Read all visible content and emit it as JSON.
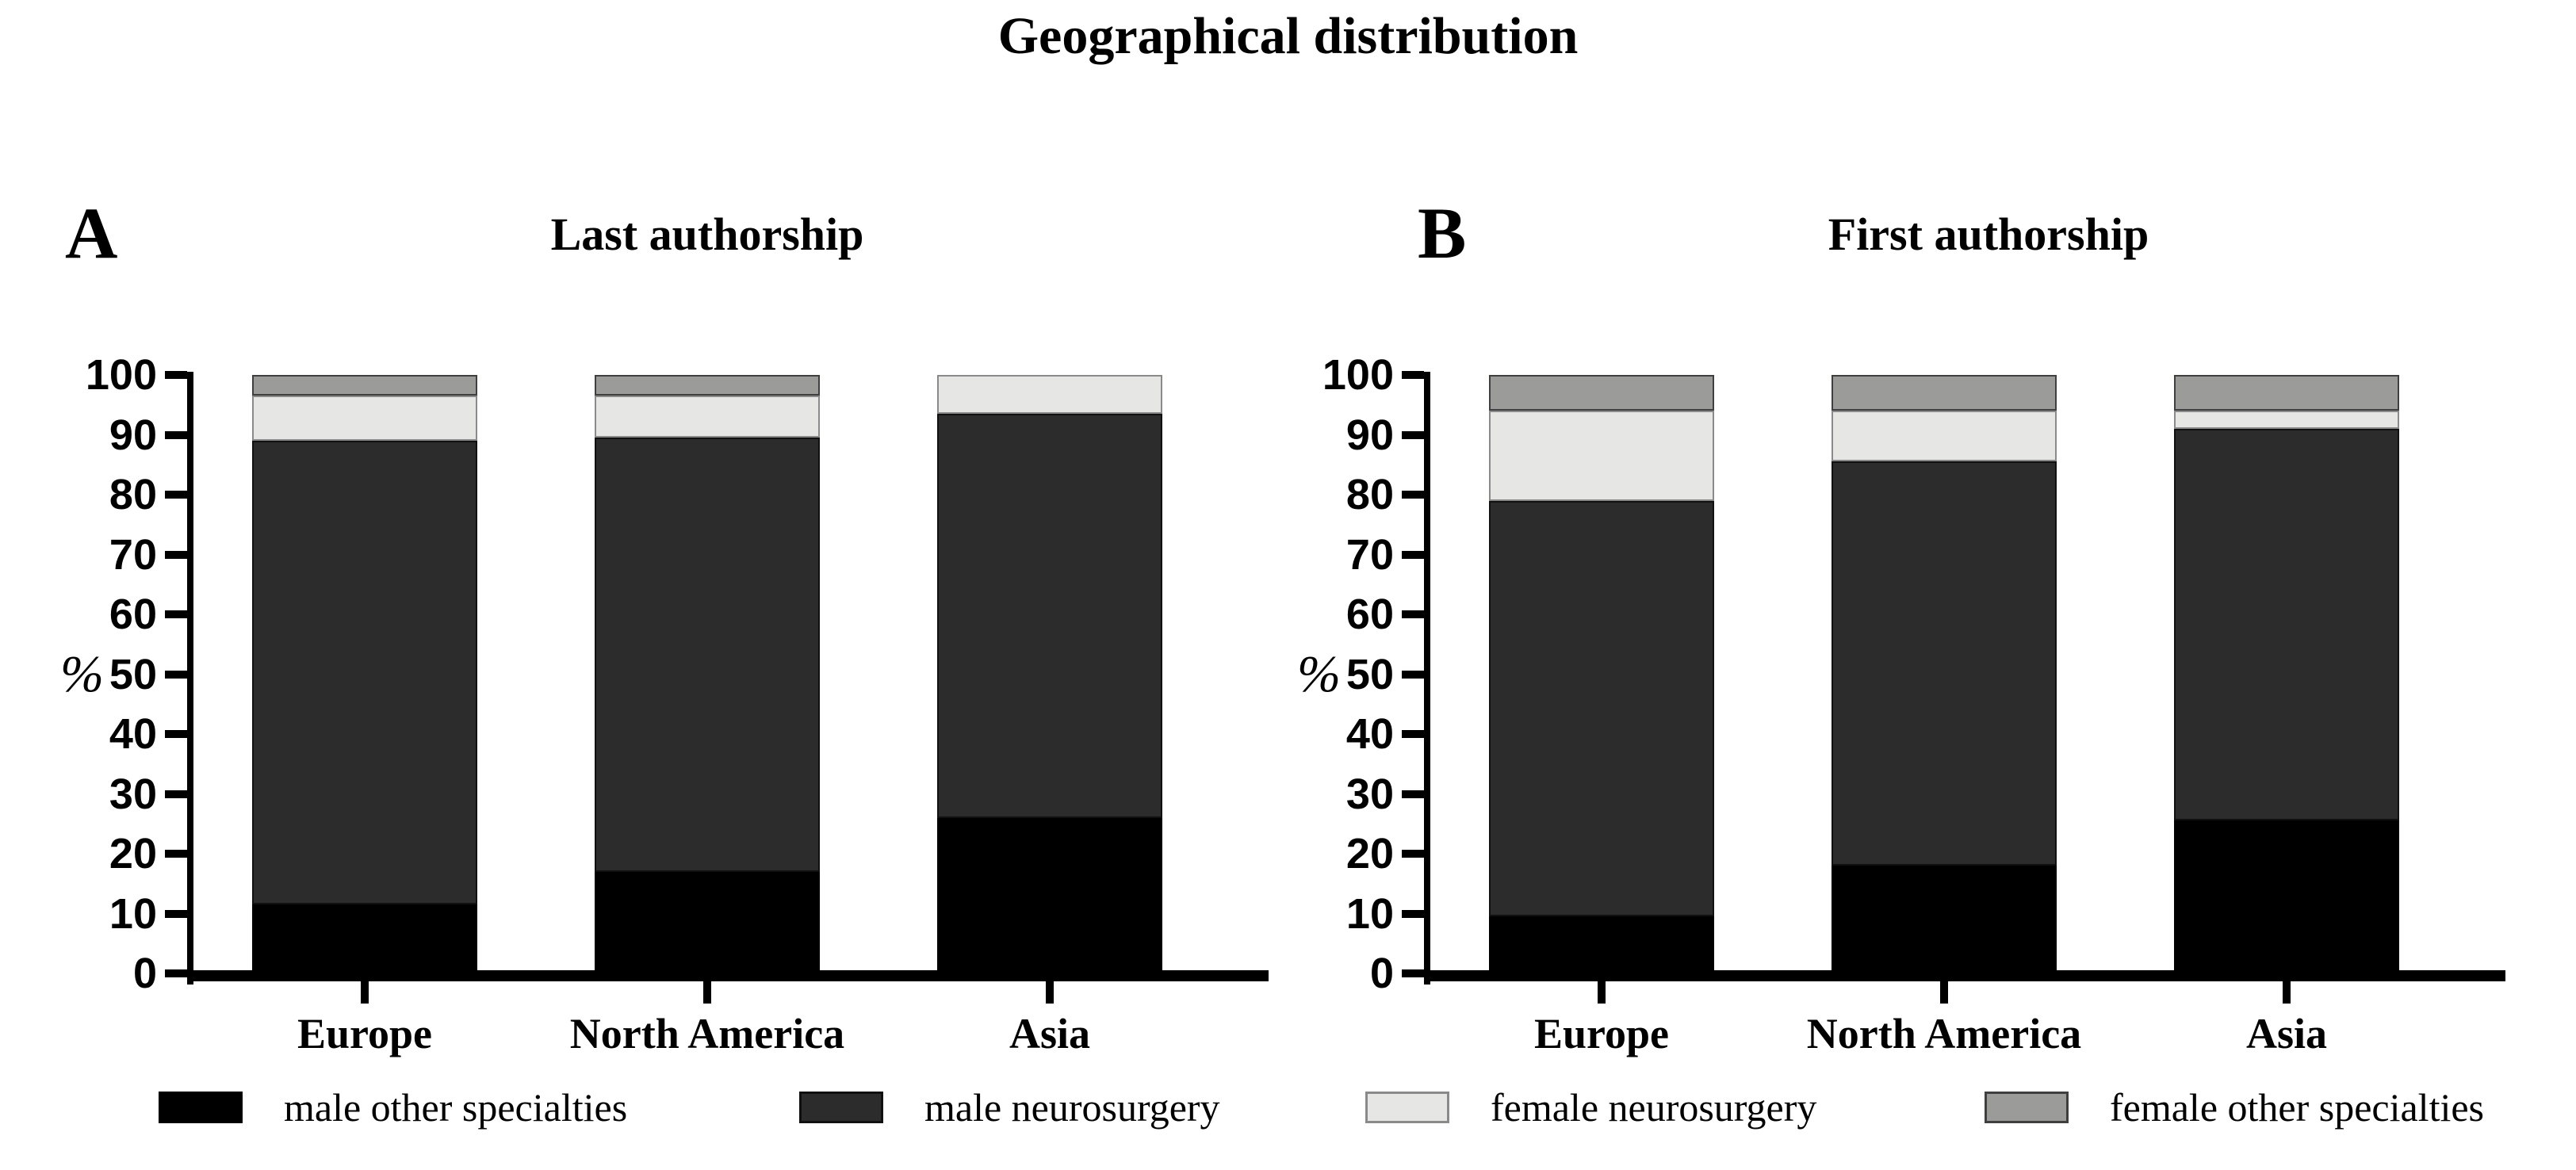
{
  "page": {
    "title": "Geographical distribution"
  },
  "axis": {
    "unit_label": "%",
    "yticks": [
      0,
      10,
      20,
      30,
      40,
      50,
      60,
      70,
      80,
      90,
      100
    ]
  },
  "legend": {
    "items": [
      {
        "label": "male other specialties",
        "color": "#000000",
        "border": "#000000"
      },
      {
        "label": "male neurosurgery",
        "color": "#2c2c2c",
        "border": "#101010"
      },
      {
        "label": "female neurosurgery",
        "color": "#e6e6e4",
        "border": "#8a8a8a"
      },
      {
        "label": "female other specialties",
        "color": "#9b9b99",
        "border": "#3f3f3f"
      }
    ]
  },
  "chart_data": [
    {
      "type": "bar",
      "subtype": "stacked-percentage",
      "panel_label": "A",
      "title": "Last authorship",
      "ylabel": "%",
      "ylim": [
        0,
        100
      ],
      "grid": false,
      "categories": [
        "Europe",
        "North America",
        "Asia"
      ],
      "series": [
        {
          "name": "male other specialties",
          "color": "#000000",
          "border": "#000000",
          "values": [
            11.5,
            17,
            26
          ]
        },
        {
          "name": "male neurosurgery",
          "color": "#2c2c2c",
          "border": "#101010",
          "values": [
            77.5,
            72.5,
            67.5
          ]
        },
        {
          "name": "female neurosurgery",
          "color": "#e6e6e4",
          "border": "#8a8a8a",
          "values": [
            7.5,
            7,
            6.5
          ]
        },
        {
          "name": "female other specialties",
          "color": "#9b9b99",
          "border": "#3f3f3f",
          "values": [
            3.5,
            3.5,
            0
          ]
        }
      ]
    },
    {
      "type": "bar",
      "subtype": "stacked-percentage",
      "panel_label": "B",
      "title": "First authorship",
      "ylabel": "%",
      "ylim": [
        0,
        100
      ],
      "grid": false,
      "categories": [
        "Europe",
        "North America",
        "Asia"
      ],
      "series": [
        {
          "name": "male other specialties",
          "color": "#000000",
          "border": "#000000",
          "values": [
            9.5,
            18,
            25.5
          ]
        },
        {
          "name": "male neurosurgery",
          "color": "#2c2c2c",
          "border": "#101010",
          "values": [
            69.5,
            67.5,
            65.5
          ]
        },
        {
          "name": "female neurosurgery",
          "color": "#e6e6e4",
          "border": "#8a8a8a",
          "values": [
            15,
            8.5,
            3
          ]
        },
        {
          "name": "female other specialties",
          "color": "#9b9b99",
          "border": "#3f3f3f",
          "values": [
            6,
            6,
            6
          ]
        }
      ]
    }
  ]
}
